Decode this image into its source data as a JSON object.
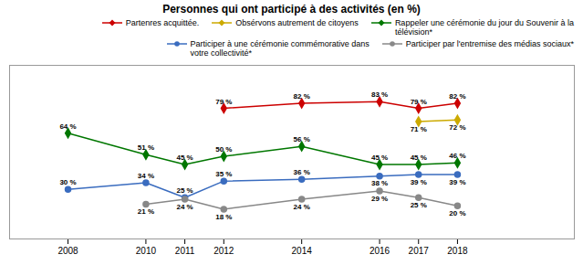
{
  "chart_data": {
    "type": "line",
    "title": "Personnes qui ont participé à des activités (en %)",
    "x": [
      2008,
      2010,
      2011,
      2012,
      2014,
      2016,
      2017,
      2018
    ],
    "xlim": [
      2006.5,
      2021
    ],
    "xticks": [
      2008,
      2010,
      2011,
      2012,
      2014,
      2016,
      2017,
      2018
    ],
    "ylim": [
      0,
      105
    ],
    "yticks": [],
    "tick_labels": "x",
    "grid": false,
    "legend": "upper right",
    "data_labels": true,
    "series": [
      {
        "name": "Partenres acquittée.",
        "color": "#cc0000",
        "marker": "diamond",
        "values": [
          null,
          null,
          null,
          79,
          82,
          83,
          79,
          82
        ],
        "value_labels": [
          null,
          null,
          null,
          "79 %",
          "82 %",
          "83 %",
          "79 %",
          "82 %"
        ]
      },
      {
        "name": "Obsérvons autrement de citoyens",
        "color": "#ccaa00",
        "marker": "diamond",
        "values": [
          null,
          null,
          null,
          null,
          null,
          null,
          71,
          72
        ],
        "value_labels": [
          null,
          null,
          null,
          null,
          null,
          null,
          "71 %",
          "72 %"
        ]
      },
      {
        "name": "Rappeler une cérémonie du jour du Souvenir à la\ntélévision*",
        "color": "#007700",
        "marker": "diamond",
        "values": [
          64,
          51,
          45,
          50,
          56,
          45,
          45,
          46
        ],
        "value_labels": [
          "64 %",
          "51 %",
          "45 %",
          "50 %",
          "56 %",
          "45 %",
          "45 %",
          "46 %"
        ]
      },
      {
        "name": "Participer à une cérémonie commémorative dans\nvotre collectivité*",
        "color": "#3a6cbf",
        "marker": "circle",
        "values": [
          30,
          34,
          25,
          35,
          36,
          38,
          39,
          39
        ],
        "value_labels": [
          "30 %",
          "34 %",
          "25 %",
          "35 %",
          "36 %",
          "38 %",
          "39 %",
          "39 %"
        ]
      },
      {
        "name": "Participer par l'entremise des médias sociaux*",
        "color": "#888888",
        "marker": "circle",
        "values": [
          null,
          21,
          24,
          18,
          24,
          29,
          25,
          20
        ],
        "value_labels": [
          null,
          "21 %",
          "24 %",
          "18 %",
          "24 %",
          "29 %",
          "25 %",
          "20 %"
        ]
      }
    ]
  }
}
